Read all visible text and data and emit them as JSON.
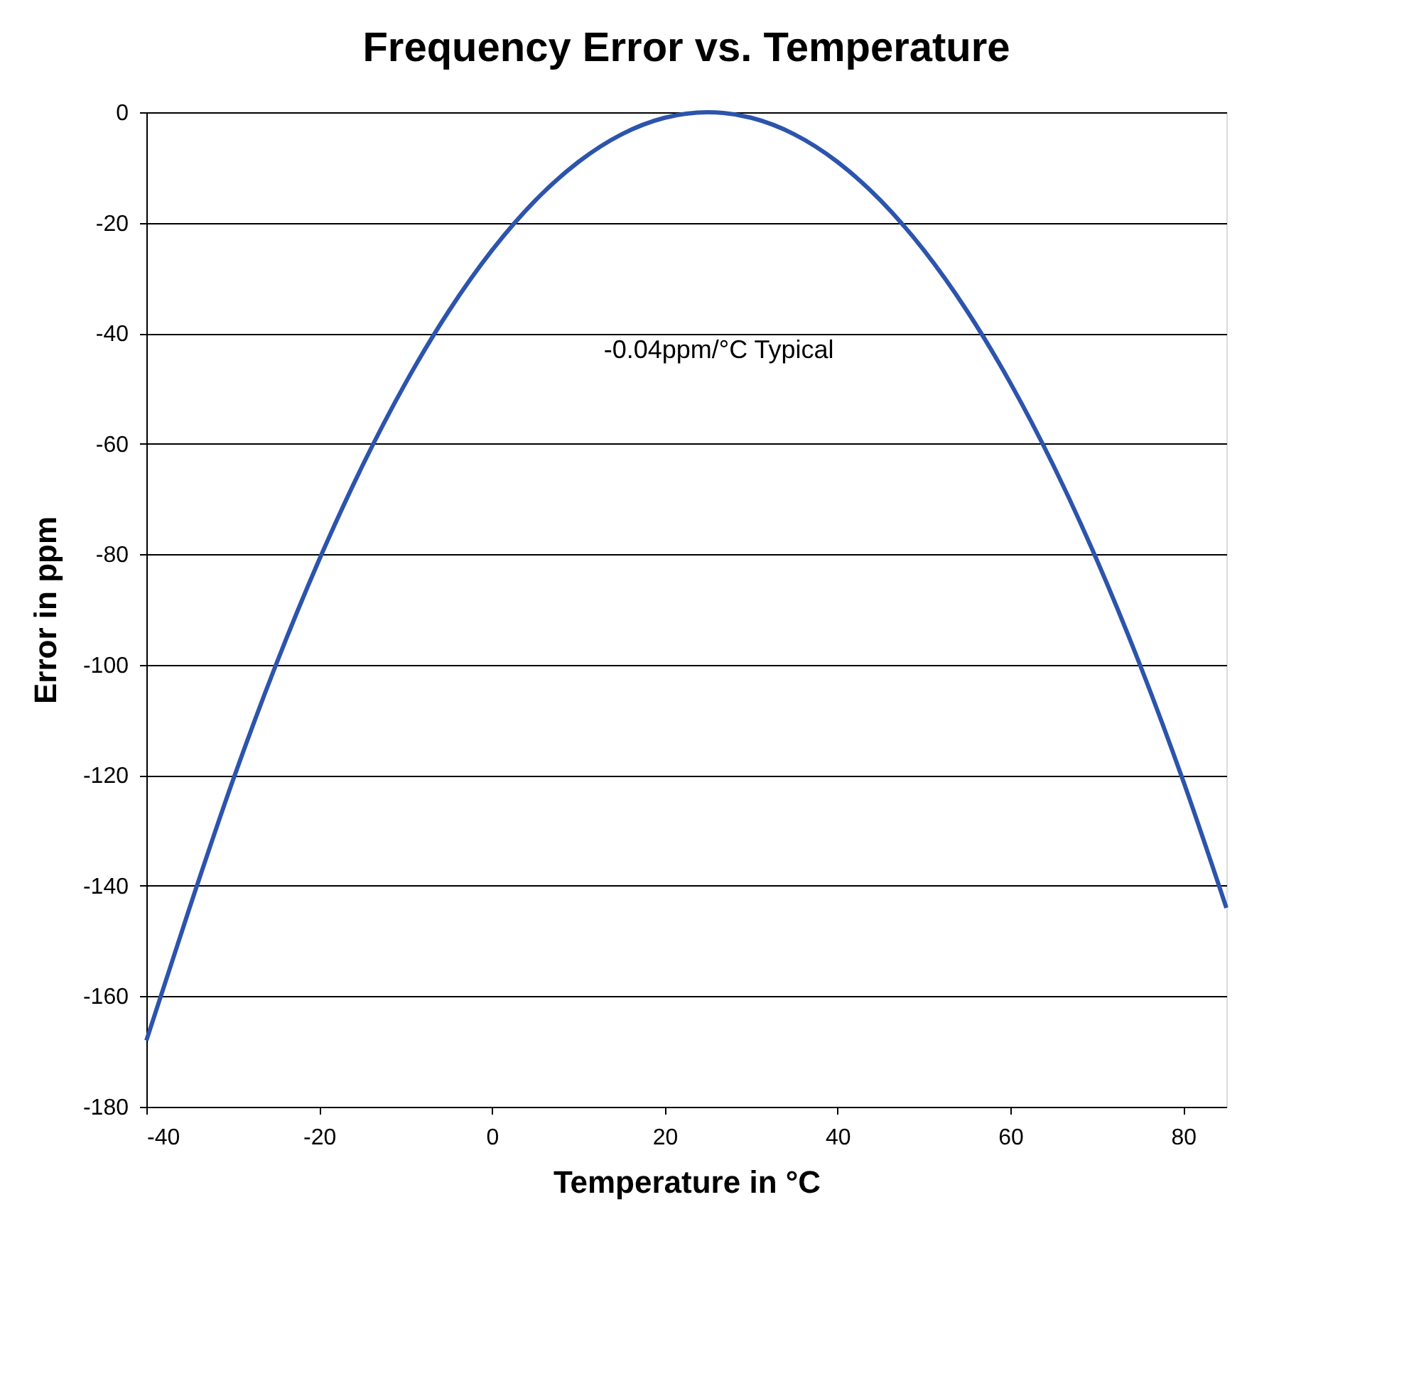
{
  "chart_data": {
    "type": "line",
    "title": "Frequency Error vs. Temperature",
    "xlabel": "Temperature in °C",
    "ylabel": "Error in ppm",
    "x": [
      -40,
      -35,
      -30,
      -25,
      -20,
      -15,
      -10,
      -5,
      0,
      5,
      10,
      15,
      20,
      25,
      30,
      35,
      40,
      45,
      50,
      55,
      60,
      65,
      70,
      75,
      80,
      85
    ],
    "series": [
      {
        "color": "#2c54ad",
        "values": [
          -168,
          -144,
          -121,
          -100,
          -81,
          -64,
          -49,
          -36,
          -25,
          -16,
          -9,
          -4,
          -1,
          0,
          -1,
          -4,
          -9,
          -16,
          -25,
          -36,
          -49,
          -64,
          -81,
          -100,
          -121,
          -144
        ]
      }
    ],
    "xlim": [
      -40,
      85
    ],
    "xticks": [
      -40,
      -20,
      0,
      20,
      40,
      60,
      80
    ],
    "ylim": [
      -180,
      0
    ],
    "yticks": [
      -180,
      -160,
      -140,
      -120,
      -100,
      -80,
      -60,
      -40,
      -20,
      0
    ],
    "grid": "y",
    "marker": "none",
    "line_style": "solid",
    "annotations": [
      "-0.04ppm/°C Typical"
    ]
  }
}
